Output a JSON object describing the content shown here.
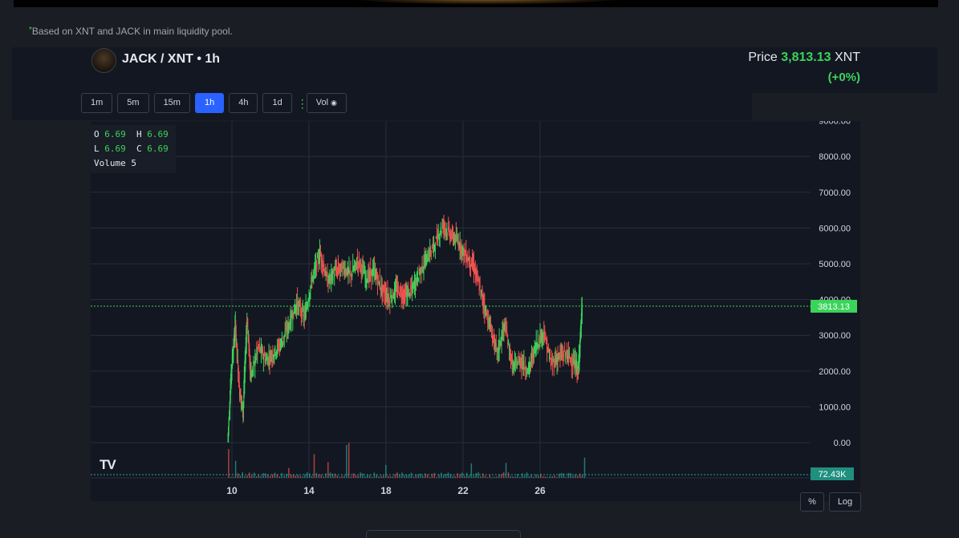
{
  "note": {
    "star": "*",
    "text": "Based on XNT and JACK in main liquidity pool."
  },
  "header": {
    "pair": "JACK / XNT • 1h",
    "price_label": "Price",
    "price_value": "3,813.13",
    "price_unit": "XNT",
    "price_change": "(+0%)"
  },
  "timeframes": [
    {
      "label": "1m",
      "active": false
    },
    {
      "label": "5m",
      "active": false
    },
    {
      "label": "15m",
      "active": false
    },
    {
      "label": "1h",
      "active": true
    },
    {
      "label": "4h",
      "active": false
    },
    {
      "label": "1d",
      "active": false
    }
  ],
  "vol_toggle": {
    "label": "Vol",
    "icon": "eye-icon"
  },
  "ohlc": {
    "o_label": "O",
    "o": "6.69",
    "h_label": "H",
    "h": "6.69",
    "l_label": "L",
    "l": "6.69",
    "c_label": "C",
    "c": "6.69",
    "vol_label": "Volume",
    "vol": "5"
  },
  "axis_buttons": {
    "percent": "%",
    "log": "Log"
  },
  "colors": {
    "up": "#3ad45a",
    "down": "#ef5350",
    "grid": "#2a2e39",
    "vol_up": "#26a69a",
    "vol_down": "#ef5350"
  },
  "chart_data": {
    "type": "candlestick",
    "y_ticks": [
      "9000.00",
      "8000.00",
      "7000.00",
      "6000.00",
      "5000.00",
      "4000.00",
      "3000.00",
      "2000.00",
      "1000.00",
      "0.00"
    ],
    "x_ticks": [
      "10",
      "14",
      "18",
      "22",
      "26"
    ],
    "ylim": [
      0,
      9000
    ],
    "x_range_days": [
      9.0,
      29.0
    ],
    "last_price": 3813.13,
    "last_price_label": "3813.13",
    "volume_label": "72.43K",
    "series_close_approx": [
      {
        "x": 9.8,
        "y": 20
      },
      {
        "x": 10.0,
        "y": 2100
      },
      {
        "x": 10.2,
        "y": 3300
      },
      {
        "x": 10.4,
        "y": 1500
      },
      {
        "x": 10.6,
        "y": 900
      },
      {
        "x": 10.8,
        "y": 3500
      },
      {
        "x": 11.0,
        "y": 1800
      },
      {
        "x": 11.4,
        "y": 2700
      },
      {
        "x": 11.8,
        "y": 2300
      },
      {
        "x": 12.2,
        "y": 2500
      },
      {
        "x": 12.6,
        "y": 2800
      },
      {
        "x": 13.0,
        "y": 3300
      },
      {
        "x": 13.4,
        "y": 3900
      },
      {
        "x": 13.8,
        "y": 3500
      },
      {
        "x": 14.2,
        "y": 4600
      },
      {
        "x": 14.6,
        "y": 5300
      },
      {
        "x": 15.0,
        "y": 4500
      },
      {
        "x": 15.4,
        "y": 4800
      },
      {
        "x": 15.8,
        "y": 4900
      },
      {
        "x": 16.2,
        "y": 4700
      },
      {
        "x": 16.6,
        "y": 5100
      },
      {
        "x": 17.0,
        "y": 4600
      },
      {
        "x": 17.4,
        "y": 4800
      },
      {
        "x": 17.8,
        "y": 4300
      },
      {
        "x": 18.2,
        "y": 4000
      },
      {
        "x": 18.6,
        "y": 4300
      },
      {
        "x": 19.0,
        "y": 4100
      },
      {
        "x": 19.4,
        "y": 4300
      },
      {
        "x": 19.8,
        "y": 4800
      },
      {
        "x": 20.2,
        "y": 5200
      },
      {
        "x": 20.6,
        "y": 5600
      },
      {
        "x": 21.0,
        "y": 6100
      },
      {
        "x": 21.4,
        "y": 5800
      },
      {
        "x": 21.8,
        "y": 5600
      },
      {
        "x": 22.2,
        "y": 5200
      },
      {
        "x": 22.6,
        "y": 4900
      },
      {
        "x": 23.0,
        "y": 4100
      },
      {
        "x": 23.4,
        "y": 3300
      },
      {
        "x": 23.8,
        "y": 2500
      },
      {
        "x": 24.2,
        "y": 3300
      },
      {
        "x": 24.6,
        "y": 2100
      },
      {
        "x": 25.0,
        "y": 2300
      },
      {
        "x": 25.4,
        "y": 2000
      },
      {
        "x": 25.8,
        "y": 2700
      },
      {
        "x": 26.2,
        "y": 3100
      },
      {
        "x": 26.6,
        "y": 2200
      },
      {
        "x": 27.0,
        "y": 2400
      },
      {
        "x": 27.4,
        "y": 2500
      },
      {
        "x": 27.8,
        "y": 2200
      },
      {
        "x": 28.0,
        "y": 2000
      },
      {
        "x": 28.2,
        "y": 3813
      }
    ]
  }
}
